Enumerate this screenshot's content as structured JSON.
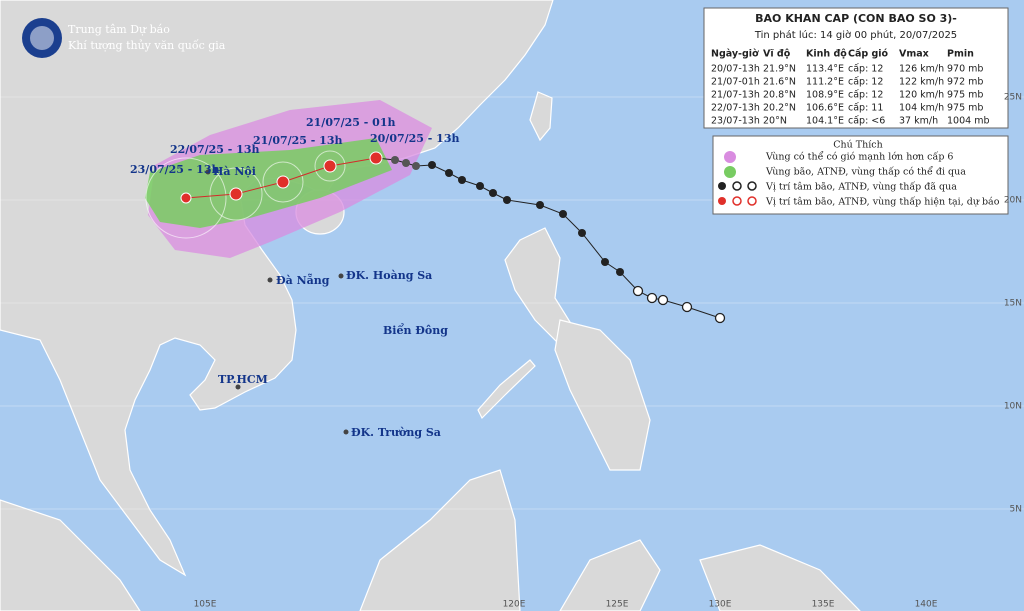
{
  "header": {
    "agency": [
      "Trung tâm Dự báo",
      "Khí tượng thủy văn quốc gia"
    ]
  },
  "bulletin": {
    "title": "BAO KHAN CAP (CON BAO SO 3)-",
    "issued": "Tin phát lúc: 14 giờ 00 phút, 20/07/2025",
    "columns": [
      "Ngày-giờ",
      "Vĩ độ",
      "Kinh độ",
      "Cấp gió",
      "Vmax",
      "Pmin"
    ],
    "rows": [
      [
        "20/07-13h",
        "21.9°N",
        "113.4°E",
        "cấp: 12",
        "126 km/h",
        "970 mb"
      ],
      [
        "21/07-01h",
        "21.6°N",
        "111.2°E",
        "cấp: 12",
        "122 km/h",
        "972 mb"
      ],
      [
        "21/07-13h",
        "20.8°N",
        "108.9°E",
        "cấp: 12",
        "120 km/h",
        "975 mb"
      ],
      [
        "22/07-13h",
        "20.2°N",
        "106.6°E",
        "cấp: 11",
        "104 km/h",
        "975 mb"
      ],
      [
        "23/07-13h",
        "20°N",
        "104.1°E",
        "cấp: <6",
        "37 km/h",
        "1004 mb"
      ]
    ]
  },
  "legend": {
    "title": "Chú Thích",
    "items": [
      "Vùng có thể có gió mạnh lớn hơn cấp 6",
      "Vùng bão, ATNĐ, vùng thấp có thể đi qua",
      "Vị trí tâm bão, ATNĐ, vùng thấp đã qua",
      "Vị trí tâm bão, ATNĐ, vùng thấp hiện tại, dự báo"
    ]
  },
  "track_labels": [
    "23/07/25 - 13h",
    "22/07/25 - 13h",
    "21/07/25 - 13h",
    "21/07/25 - 01h",
    "20/07/25 - 13h"
  ],
  "places": [
    "Hà Nội",
    "Đà Nẵng",
    "ĐK. Hoàng Sa",
    "TP.HCM",
    "ĐK. Trường Sa",
    "Biển Đông"
  ],
  "latitudes": [
    "25N",
    "20N",
    "15N",
    "10N",
    "5N"
  ],
  "longitudes": [
    "105E",
    "120E",
    "125E",
    "130E",
    "135E",
    "140E"
  ]
}
